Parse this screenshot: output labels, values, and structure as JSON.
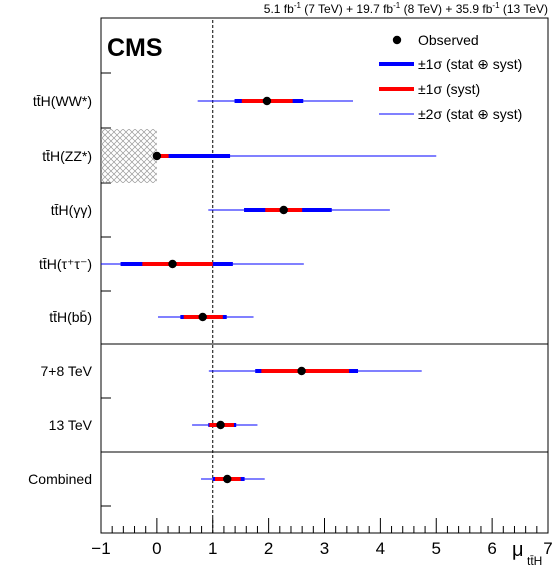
{
  "chart_data": {
    "type": "scatter",
    "title": "5.1 fb-1 (7 TeV) + 19.7 fb-1 (8 TeV) + 35.9 fb-1 (13 TeV)",
    "title_parts": [
      "5.1 fb",
      "-1",
      " (7 TeV) + 19.7 fb",
      "-1",
      " (8 TeV) + 35.9 fb",
      "-1",
      " (13 TeV)"
    ],
    "badge": "CMS",
    "xlabel_main": "μ",
    "xlabel_sub": "tt̄H",
    "xlim": [
      -1,
      7
    ],
    "xticks": [
      "−1",
      "0",
      "1",
      "2",
      "3",
      "4",
      "5",
      "6",
      "7"
    ],
    "sm_reference": 1,
    "legend": {
      "placement": "top-right",
      "entries": [
        {
          "label": "Observed",
          "style": "marker"
        },
        {
          "label": "±1σ (stat ⊕ syst)",
          "style": "thick-blue"
        },
        {
          "label": "±1σ (syst)",
          "style": "thick-red"
        },
        {
          "label": "±2σ (stat ⊕ syst)",
          "style": "thin-blue"
        }
      ]
    },
    "colors": {
      "stat_syst": "#0000ff",
      "syst": "#ff0000",
      "marker": "#000000"
    },
    "rows": [
      {
        "label": "tt̄H(WW*)",
        "observed": 1.97,
        "one_sigma": [
          1.39,
          2.62
        ],
        "one_sigma_syst": [
          1.52,
          2.43
        ],
        "two_sigma": [
          0.73,
          3.51
        ]
      },
      {
        "label": "tt̄H(ZZ*)",
        "observed": 0.0,
        "one_sigma": [
          0.0,
          1.31
        ],
        "one_sigma_syst": [
          0.0,
          0.21
        ],
        "two_sigma": [
          0.0,
          5.0
        ],
        "excluded_region": [
          -1,
          0
        ]
      },
      {
        "label": "tt̄H(γγ)",
        "observed": 2.27,
        "one_sigma": [
          1.56,
          3.13
        ],
        "one_sigma_syst": [
          1.94,
          2.6
        ],
        "two_sigma": [
          0.92,
          4.17
        ]
      },
      {
        "label": "tt̄H(τ⁺τ⁻)",
        "observed": 0.28,
        "one_sigma": [
          -0.65,
          1.36
        ],
        "one_sigma_syst": [
          -0.26,
          1.0
        ],
        "two_sigma": [
          -1.0,
          2.63
        ]
      },
      {
        "label": "tt̄H(bb̄)",
        "observed": 0.82,
        "one_sigma": [
          0.42,
          1.25
        ],
        "one_sigma_syst": [
          0.48,
          1.18
        ],
        "two_sigma": [
          0.02,
          1.73
        ]
      },
      {
        "label": "7+8 TeV",
        "observed": 2.59,
        "one_sigma": [
          1.76,
          3.6
        ],
        "one_sigma_syst": [
          1.87,
          3.44
        ],
        "two_sigma": [
          0.93,
          4.74
        ]
      },
      {
        "label": "13 TeV",
        "observed": 1.14,
        "one_sigma": [
          0.92,
          1.42
        ],
        "one_sigma_syst": [
          0.94,
          1.38
        ],
        "two_sigma": [
          0.63,
          1.8
        ]
      },
      {
        "label": "Combined",
        "observed": 1.26,
        "one_sigma": [
          1.0,
          1.57
        ],
        "one_sigma_syst": [
          1.04,
          1.5
        ],
        "two_sigma": [
          0.79,
          1.93
        ]
      }
    ]
  }
}
